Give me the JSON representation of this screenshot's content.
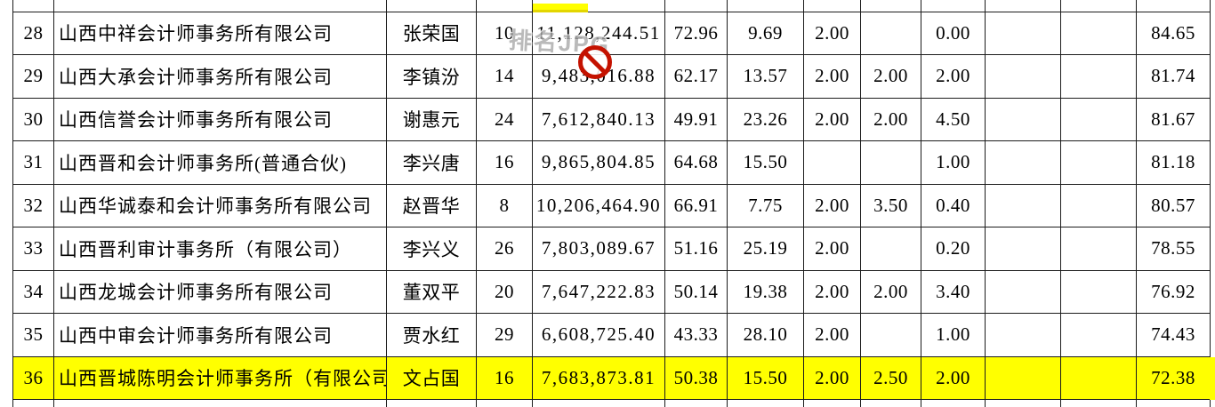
{
  "table": {
    "highlight_color": "#ffff00",
    "rows": [
      {
        "highlighted": false,
        "cells": [
          "28",
          "山西中祥会计师事务所有限公司",
          "张荣国",
          "10",
          "11,128,244.51",
          "72.96",
          "9.69",
          "2.00",
          "",
          "0.00",
          "",
          "",
          "84.65"
        ]
      },
      {
        "highlighted": false,
        "cells": [
          "29",
          "山西大承会计师事务所有限公司",
          "李镇汾",
          "14",
          "9,483,016.88",
          "62.17",
          "13.57",
          "2.00",
          "2.00",
          "2.00",
          "",
          "",
          "81.74"
        ]
      },
      {
        "highlighted": false,
        "cells": [
          "30",
          "山西信誉会计师事务所有限公司",
          "谢惠元",
          "24",
          "7,612,840.13",
          "49.91",
          "23.26",
          "2.00",
          "2.00",
          "4.50",
          "",
          "",
          "81.67"
        ]
      },
      {
        "highlighted": false,
        "cells": [
          "31",
          "山西晋和会计师事务所(普通合伙)",
          "李兴唐",
          "16",
          "9,865,804.85",
          "64.68",
          "15.50",
          "",
          "",
          "1.00",
          "",
          "",
          "81.18"
        ]
      },
      {
        "highlighted": false,
        "cells": [
          "32",
          "山西华诚泰和会计师事务所有限公司",
          "赵晋华",
          "8",
          "10,206,464.90",
          "66.91",
          "7.75",
          "2.00",
          "3.50",
          "0.40",
          "",
          "",
          "80.57"
        ]
      },
      {
        "highlighted": false,
        "cells": [
          "33",
          "山西晋利审计事务所（有限公司）",
          "李兴义",
          "26",
          "7,803,089.67",
          "51.16",
          "25.19",
          "2.00",
          "",
          "0.20",
          "",
          "",
          "78.55"
        ]
      },
      {
        "highlighted": false,
        "cells": [
          "34",
          "山西龙城会计师事务所有限公司",
          "董双平",
          "20",
          "7,647,222.83",
          "50.14",
          "19.38",
          "2.00",
          "2.00",
          "3.40",
          "",
          "",
          "76.92"
        ]
      },
      {
        "highlighted": false,
        "cells": [
          "35",
          "山西中审会计师事务所有限公司",
          "贾水红",
          "29",
          "6,608,725.40",
          "43.33",
          "28.10",
          "2.00",
          "",
          "1.00",
          "",
          "",
          "74.43"
        ]
      },
      {
        "highlighted": true,
        "cells": [
          "36",
          "山西晋城陈明会计师事务所（有限公司）",
          "文占国",
          "16",
          "7,683,873.81",
          "50.38",
          "15.50",
          "2.00",
          "2.50",
          "2.00",
          "",
          "",
          "72.38"
        ]
      }
    ]
  },
  "watermark": {
    "text": "排名JPG",
    "color": "#a9a9a9"
  },
  "icons": {
    "prohibition": "no-entry-stamp",
    "prohibition_color": "#c41200"
  },
  "remnant_highlight": {
    "color": "#ffff00"
  }
}
